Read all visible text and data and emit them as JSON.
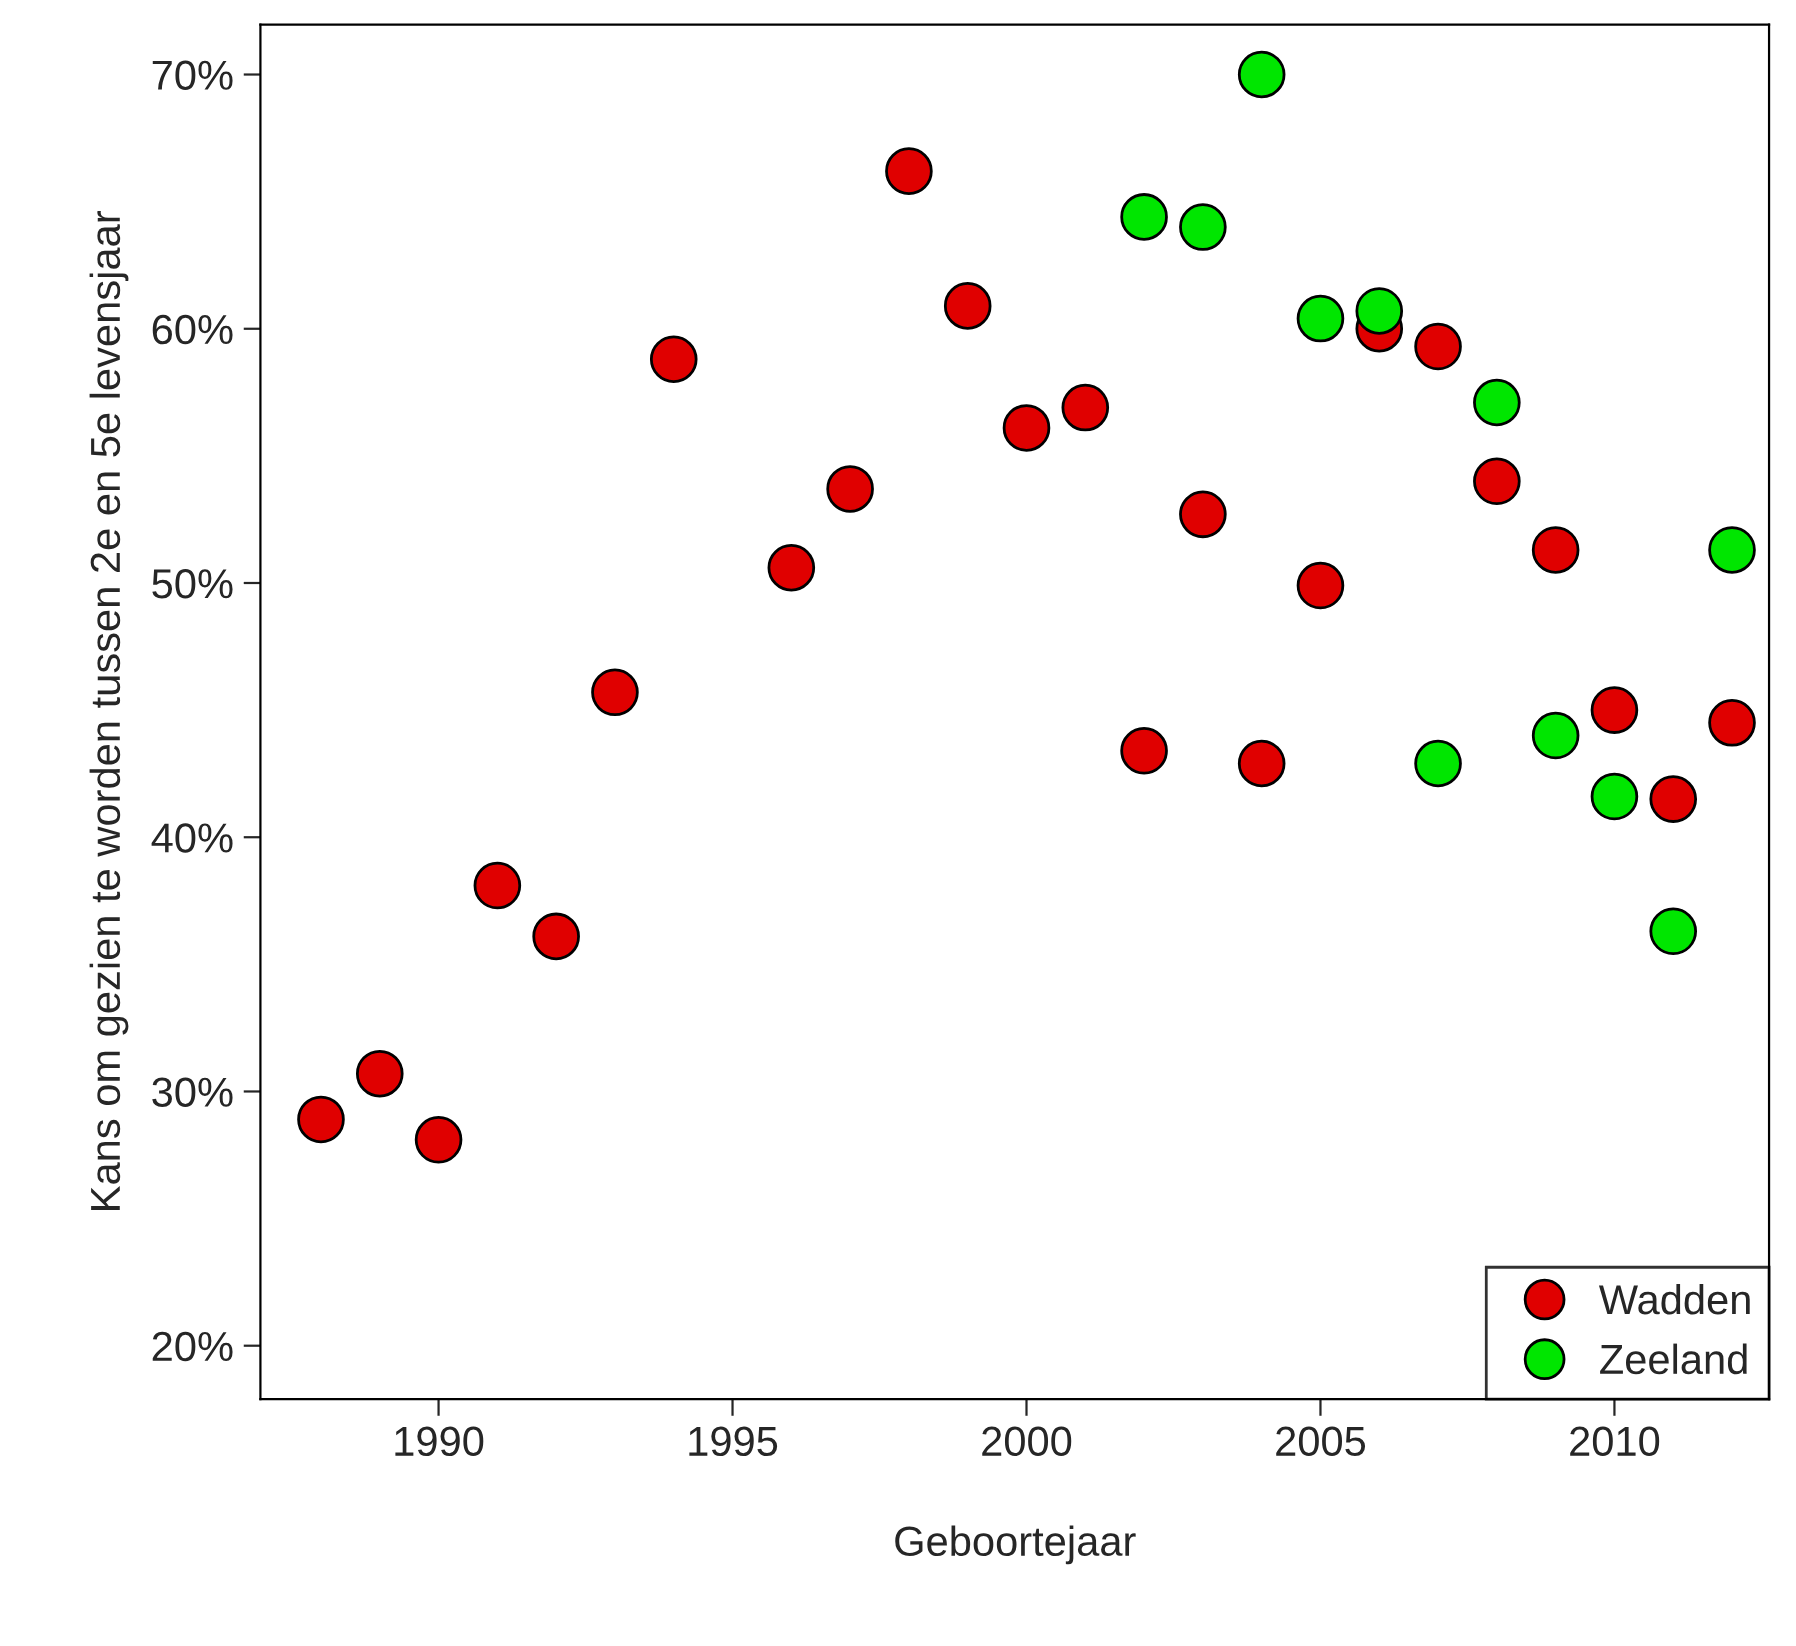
{
  "chart_data": {
    "type": "scatter",
    "xlabel": "Geboortejaar",
    "ylabel": "Kans om gezien te worden tussen 2e en 5e levensjaar",
    "series": [
      {
        "name": "Wadden",
        "color": "#e00000",
        "x": [
          1988,
          1989,
          1990,
          1991,
          1992,
          1993,
          1994,
          1996,
          1997,
          1998,
          1999,
          2000,
          2001,
          2002,
          2003,
          2004,
          2005,
          2006,
          2007,
          2008,
          2009,
          2010,
          2011,
          2012
        ],
        "values": [
          28.9,
          30.7,
          28.1,
          38.1,
          36.1,
          45.7,
          58.8,
          50.6,
          53.7,
          66.2,
          60.9,
          56.1,
          56.9,
          43.4,
          52.7,
          42.9,
          49.9,
          60.0,
          59.3,
          54.0,
          51.3,
          45.0,
          41.5,
          44.5
        ]
      },
      {
        "name": "Zeeland",
        "color": "#00e600",
        "x": [
          2002,
          2003,
          2004,
          2005,
          2006,
          2007,
          2008,
          2009,
          2010,
          2011,
          2012
        ],
        "values": [
          64.4,
          64.0,
          70.0,
          60.4,
          60.7,
          42.9,
          57.1,
          44.0,
          41.6,
          36.3,
          51.3
        ]
      }
    ],
    "marker": "circle",
    "xlim": [
      1986.97,
      2012.63
    ],
    "xticks": [
      1990,
      1995,
      2000,
      2005,
      2010
    ],
    "ylim": [
      17.9,
      71.96
    ],
    "yticks": [
      {
        "value": 20,
        "label": "20%"
      },
      {
        "value": 30,
        "label": "30%"
      },
      {
        "value": 40,
        "label": "40%"
      },
      {
        "value": 50,
        "label": "50%"
      },
      {
        "value": 60,
        "label": "60%"
      },
      {
        "value": 70,
        "label": "70%"
      }
    ],
    "grid": false,
    "legend": "bottom right"
  }
}
